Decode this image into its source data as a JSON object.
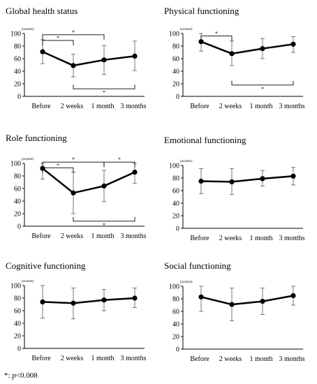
{
  "chart_data": [
    {
      "type": "line",
      "title": "Global health status",
      "ylabel": "(scores)",
      "categories": [
        "Before",
        "2 weeks",
        "1 month",
        "3 months"
      ],
      "ylim": [
        0,
        100
      ],
      "yticks": [
        0,
        20,
        40,
        60,
        80,
        100
      ],
      "series": [
        {
          "values": [
            71,
            49,
            58,
            64
          ],
          "err": [
            [
              52,
              90
            ],
            [
              31,
              67
            ],
            [
              35,
              81
            ],
            [
              41,
              88
            ]
          ]
        }
      ],
      "brackets": [
        {
          "from": 0,
          "to": 2,
          "label": "*",
          "pos": "top",
          "level": 98
        },
        {
          "from": 0,
          "to": 1,
          "label": "*",
          "pos": "top",
          "level": 89
        },
        {
          "from": 1,
          "to": 3,
          "label": "*",
          "pos": "bottom",
          "level": 12
        }
      ]
    },
    {
      "type": "line",
      "title": "Physical functioning",
      "ylabel": "(scores)",
      "categories": [
        "Before",
        "2 weeks",
        "1 month",
        "3 months"
      ],
      "ylim": [
        0,
        100
      ],
      "yticks": [
        0,
        20,
        40,
        60,
        80,
        100
      ],
      "series": [
        {
          "values": [
            87,
            68,
            76,
            83
          ],
          "err": [
            [
              72,
              100
            ],
            [
              49,
              88
            ],
            [
              60,
              92
            ],
            [
              70,
              95
            ]
          ]
        }
      ],
      "brackets": [
        {
          "from": 0,
          "to": 1,
          "label": "*",
          "pos": "top",
          "level": 96
        },
        {
          "from": 1,
          "to": 3,
          "label": "*",
          "pos": "bottom",
          "level": 18
        }
      ]
    },
    {
      "type": "line",
      "title": "Role functioning",
      "ylabel": "(scores)",
      "categories": [
        "Before",
        "2 weeks",
        "1 month",
        "3 months"
      ],
      "ylim": [
        0,
        100
      ],
      "yticks": [
        0,
        20,
        40,
        60,
        80,
        100
      ],
      "series": [
        {
          "values": [
            92,
            53,
            64,
            86
          ],
          "err": [
            [
              75,
              100
            ],
            [
              20,
              86
            ],
            [
              39,
              89
            ],
            [
              68,
              100
            ]
          ]
        }
      ],
      "brackets": [
        {
          "from": 0,
          "to": 2,
          "label": "*",
          "pos": "top",
          "level": 102
        },
        {
          "from": 0,
          "to": 1,
          "label": "*",
          "pos": "top",
          "level": 93
        },
        {
          "from": 2,
          "to": 3,
          "label": "*",
          "pos": "top",
          "level": 102
        },
        {
          "from": 1,
          "to": 3,
          "label": "*",
          "pos": "bottom",
          "level": 8
        }
      ]
    },
    {
      "type": "line",
      "title": "Emotional functioning",
      "ylabel": "(scores)",
      "categories": [
        "Before",
        "2 weeks",
        "1 month",
        "3 months"
      ],
      "ylim": [
        0,
        100
      ],
      "yticks": [
        0,
        20,
        40,
        60,
        80,
        100
      ],
      "series": [
        {
          "values": [
            75,
            74,
            79,
            83
          ],
          "err": [
            [
              55,
              95
            ],
            [
              54,
              95
            ],
            [
              67,
              92
            ],
            [
              69,
              97
            ]
          ]
        }
      ],
      "brackets": []
    },
    {
      "type": "line",
      "title": "Cognitive functioning",
      "ylabel": "(scores)",
      "categories": [
        "Before",
        "2 weeks",
        "1 month",
        "3 months"
      ],
      "ylim": [
        0,
        100
      ],
      "yticks": [
        0,
        20,
        40,
        60,
        80,
        100
      ],
      "series": [
        {
          "values": [
            74,
            72,
            77,
            80
          ],
          "err": [
            [
              48,
              100
            ],
            [
              47,
              96
            ],
            [
              60,
              94
            ],
            [
              65,
              96
            ]
          ]
        }
      ],
      "brackets": []
    },
    {
      "type": "line",
      "title": "Social functioning",
      "ylabel": "(scores)",
      "categories": [
        "Before",
        "2 weeks",
        "1 month",
        "3 months"
      ],
      "ylim": [
        0,
        100
      ],
      "yticks": [
        0,
        20,
        40,
        60,
        80,
        100
      ],
      "series": [
        {
          "values": [
            83,
            71,
            76,
            85
          ],
          "err": [
            [
              60,
              100
            ],
            [
              45,
              97
            ],
            [
              55,
              97
            ],
            [
              70,
              100
            ]
          ]
        }
      ],
      "brackets": []
    }
  ],
  "footnote": {
    "star": "*: ",
    "p": "p",
    "rest": "<0.008"
  }
}
